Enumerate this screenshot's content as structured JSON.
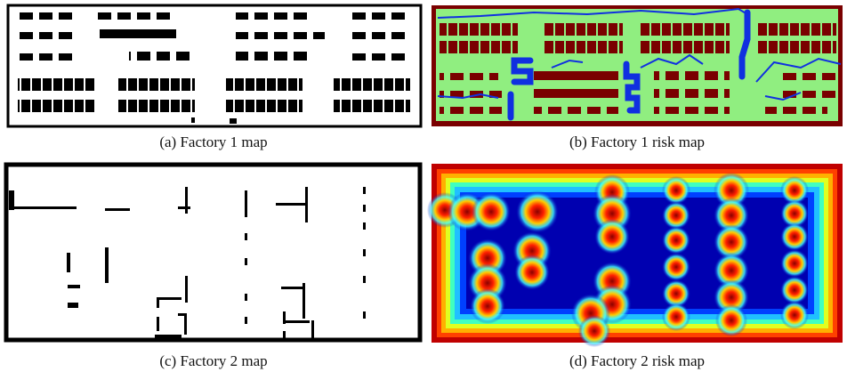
{
  "figures": [
    {
      "caption": "(a) Factory 1 map"
    },
    {
      "caption": "(b) Factory 1 risk map"
    },
    {
      "caption": "(c) Factory 2 map"
    },
    {
      "caption": "(d) Factory 2 risk map"
    }
  ]
}
